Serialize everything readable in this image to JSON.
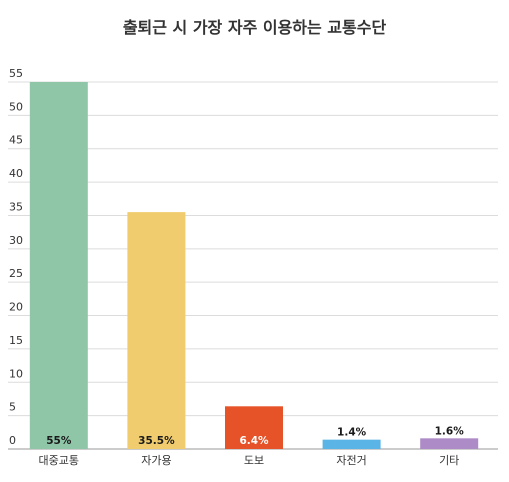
{
  "chart_data": {
    "type": "bar",
    "title": "출퇴근 시 가장 자주 이용하는 교통수단",
    "xlabel": "",
    "ylabel": "",
    "ylim": [
      0,
      55
    ],
    "yticks": [
      "0",
      "5",
      "10",
      "15",
      "20",
      "25",
      "30",
      "35",
      "40",
      "45",
      "50",
      "55"
    ],
    "grid": true,
    "categories": [
      "대중교통",
      "자가용",
      "도보",
      "자전거",
      "기타"
    ],
    "values": [
      55,
      35.5,
      6.4,
      1.4,
      1.6
    ],
    "data_labels": [
      "55%",
      "35.5%",
      "6.4%",
      "1.4%",
      "1.6%"
    ],
    "colors": [
      "#8fc6a8",
      "#f0cc6e",
      "#e65329",
      "#5ab4e5",
      "#ad8bc6"
    ],
    "label_colors": [
      "#1a1a1a",
      "#1a1a1a",
      "#ffffff",
      "#1a1a1a",
      "#1a1a1a"
    ]
  }
}
